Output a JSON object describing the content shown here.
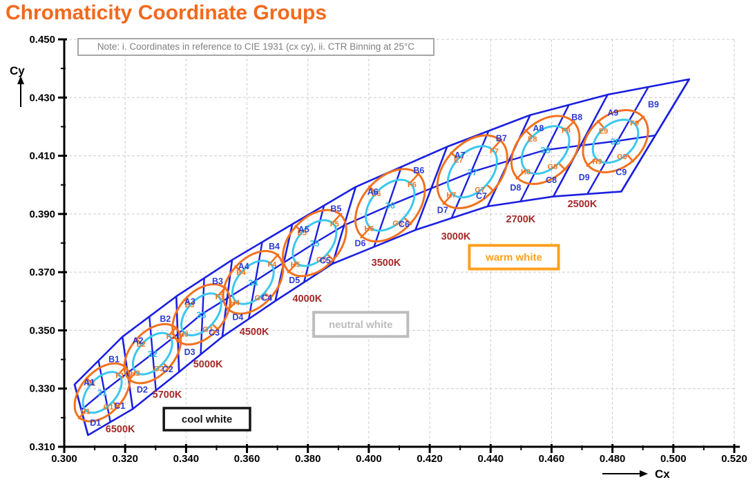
{
  "title": "Chromaticity Coordinate Groups",
  "note": "Note: i. Coordinates in reference to CIE 1931 (cx cy), ii. CTR Binning at 25°C",
  "colors": {
    "title": "#F2691D",
    "band_blue": "#1A1FE0",
    "cell_label_blue": "#2D3BD4",
    "ring_orange": "#F2711C",
    "inner_cyan": "#3BC7EF",
    "bin_cyan": "#2FBCE5",
    "cct_red": "#A52A2A",
    "grid": "#CCCCCC",
    "axis": "#000000",
    "note_text": "#7F7F7F"
  },
  "axes": {
    "x": {
      "title": "Cx",
      "min": 0.3,
      "max": 0.52,
      "major": 0.02,
      "minor": 0.01,
      "tick_labels": [
        "0.300",
        "0.320",
        "0.340",
        "0.360",
        "0.380",
        "0.400",
        "0.420",
        "0.440",
        "0.460",
        "0.480",
        "0.500",
        "0.520"
      ]
    },
    "y": {
      "title": "Cy",
      "min": 0.31,
      "max": 0.45,
      "major": 0.02,
      "minor": 0.01,
      "tick_labels": [
        "0.310",
        "0.330",
        "0.350",
        "0.370",
        "0.390",
        "0.410",
        "0.430",
        "0.450"
      ]
    }
  },
  "chart_data": {
    "type": "diagram",
    "subtype": "chromaticity-binning",
    "title": "Chromaticity Coordinate Groups",
    "xlabel": "Cx",
    "ylabel": "Cy",
    "xlim": [
      0.3,
      0.52
    ],
    "ylim": [
      0.31,
      0.45
    ],
    "grid": "dashed major",
    "groups": [
      {
        "bin": "31",
        "cct": "6500K",
        "center": [
          0.3125,
          0.3287
        ],
        "cells": [
          "A1",
          "B1",
          "C1",
          "D1"
        ],
        "segs": [
          "E1",
          "F1",
          "G1",
          "H1"
        ],
        "outer": [
          0.0112,
          0.0072
        ],
        "inner": [
          0.008,
          0.0048
        ],
        "angle": 48,
        "cct_pos": [
          0.3184,
          0.3162
        ]
      },
      {
        "bin": "32",
        "cct": "5700K",
        "center": [
          0.329,
          0.342
        ],
        "cells": [
          "A2",
          "B2",
          "C2",
          "D2"
        ],
        "segs": [
          "E2",
          "F2",
          "G2",
          "H2"
        ],
        "outer": [
          0.0114,
          0.0074
        ],
        "inner": [
          0.0081,
          0.0049
        ],
        "angle": 48,
        "cct_pos": [
          0.3338,
          0.328
        ]
      },
      {
        "bin": "33",
        "cct": "5000K",
        "center": [
          0.345,
          0.3555
        ],
        "cells": [
          "A3",
          "B3",
          "C3",
          "D3"
        ],
        "segs": [
          "E3",
          "F3",
          "G3",
          "H3"
        ],
        "outer": [
          0.0116,
          0.0076
        ],
        "inner": [
          0.0082,
          0.005
        ],
        "angle": 48,
        "cct_pos": [
          0.3472,
          0.3385
        ]
      },
      {
        "bin": "34",
        "cct": "4500K",
        "center": [
          0.362,
          0.3665
        ],
        "cells": [
          "A4",
          "B4",
          "C4",
          "D4"
        ],
        "segs": [
          "E4",
          "F4",
          "G4",
          "H4"
        ],
        "outer": [
          0.012,
          0.008
        ],
        "inner": [
          0.0084,
          0.0053
        ],
        "angle": 48,
        "cct_pos": [
          0.3624,
          0.3496
        ]
      },
      {
        "bin": "35",
        "cct": "4000K",
        "center": [
          0.3822,
          0.38
        ],
        "cells": [
          "A5",
          "B5",
          "C5",
          "D5"
        ],
        "segs": [
          "E5",
          "F5",
          "G5",
          "H5"
        ],
        "outer": [
          0.0126,
          0.0086
        ],
        "inner": [
          0.0088,
          0.0057
        ],
        "angle": 48,
        "cct_pos": [
          0.3798,
          0.361
        ]
      },
      {
        "bin": "36",
        "cct": "3500K",
        "center": [
          0.407,
          0.393
        ],
        "cells": [
          "A6",
          "B6",
          "C6",
          "D6"
        ],
        "segs": [
          "E6",
          "F6",
          "G6",
          "H6"
        ],
        "outer": [
          0.0138,
          0.0094
        ],
        "inner": [
          0.0098,
          0.0064
        ],
        "angle": 48,
        "cct_pos": [
          0.4057,
          0.3734
        ]
      },
      {
        "bin": "37",
        "cct": "3000K",
        "center": [
          0.434,
          0.4045
        ],
        "cells": [
          "A7",
          "B7",
          "C7",
          "D7"
        ],
        "segs": [
          "E7",
          "F7",
          "G7",
          "H7"
        ],
        "outer": [
          0.0138,
          0.0096
        ],
        "inner": [
          0.0098,
          0.0066
        ],
        "angle": 48,
        "cct_pos": [
          0.4286,
          0.3824
        ]
      },
      {
        "bin": "38",
        "cct": "2700K",
        "center": [
          0.458,
          0.412
        ],
        "cells": [
          "A8",
          "B8",
          "C8",
          "D8"
        ],
        "segs": [
          "E8",
          "F8",
          "G8",
          "H8"
        ],
        "outer": [
          0.013,
          0.0094
        ],
        "inner": [
          0.0092,
          0.0064
        ],
        "angle": 45,
        "cct_pos": [
          0.4499,
          0.3883
        ]
      },
      {
        "bin": "39",
        "cct": "2500K",
        "center": [
          0.481,
          0.415
        ],
        "cells": [
          "A9",
          "B9",
          "C9",
          "D9"
        ],
        "segs": [
          "E9",
          "F9",
          "G9",
          "H9"
        ],
        "outer": [
          0.012,
          0.009
        ],
        "inner": [
          0.0085,
          0.006
        ],
        "angle": 41,
        "cct_pos": [
          0.4701,
          0.3935
        ]
      }
    ],
    "dividers": [
      {
        "top": [
          0.3034,
          0.3314
        ],
        "bottom": [
          0.3078,
          0.314
        ]
      },
      {
        "top": [
          0.3191,
          0.3478
        ],
        "bottom": [
          0.3225,
          0.323
        ]
      },
      {
        "top": [
          0.3368,
          0.3617
        ],
        "bottom": [
          0.3377,
          0.3357
        ]
      },
      {
        "top": [
          0.3551,
          0.3742
        ],
        "bottom": [
          0.3519,
          0.3478
        ]
      },
      {
        "top": [
          0.3749,
          0.3865
        ],
        "bottom": [
          0.3693,
          0.3601
        ]
      },
      {
        "top": [
          0.3957,
          0.3993
        ],
        "bottom": [
          0.3881,
          0.3729
        ]
      },
      {
        "top": [
          0.4257,
          0.4131
        ],
        "bottom": [
          0.4153,
          0.3845
        ]
      },
      {
        "top": [
          0.453,
          0.424
        ],
        "bottom": [
          0.439,
          0.3926
        ]
      },
      {
        "top": [
          0.4784,
          0.431
        ],
        "bottom": [
          0.4606,
          0.396
        ]
      },
      {
        "top": [
          0.5052,
          0.4363
        ],
        "bottom": [
          0.4829,
          0.3977
        ]
      }
    ],
    "zones": [
      {
        "id": "cool-white",
        "label": "cool white",
        "x1": 0.3327,
        "x2": 0.361,
        "y_top": 0.3233,
        "y_bot": 0.3157,
        "color": "#151515",
        "border_px": 3.5
      },
      {
        "id": "neutral-white",
        "label": "neutral white",
        "x1": 0.3819,
        "x2": 0.4128,
        "y_top": 0.3562,
        "y_bot": 0.3479,
        "color": "#BDBDBD",
        "border_px": 4
      },
      {
        "id": "warm-white",
        "label": "warm white",
        "x1": 0.433,
        "x2": 0.4623,
        "y_top": 0.3792,
        "y_bot": 0.3711,
        "color": "#FFA01E",
        "border_px": 4
      }
    ]
  }
}
